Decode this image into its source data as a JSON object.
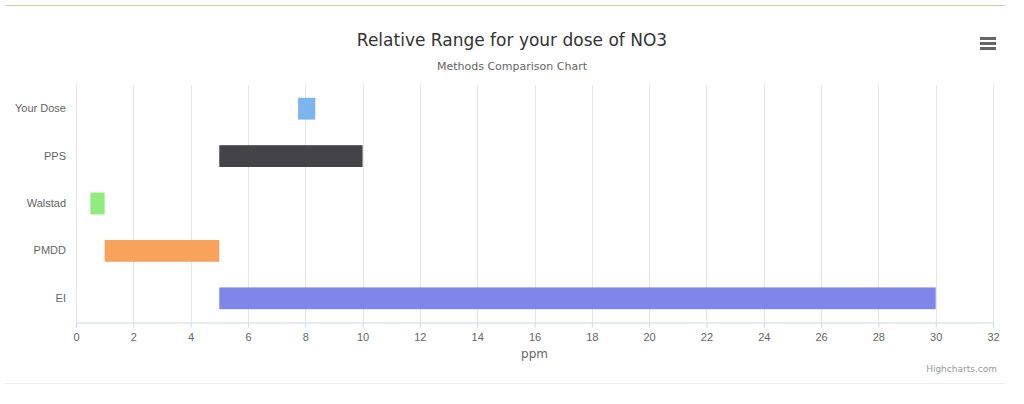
{
  "chart_data": {
    "type": "bar",
    "orientation": "horizontal",
    "title": "Relative Range for your dose of NO3",
    "subtitle": "Methods Comparison Chart",
    "x_label": "ppm",
    "credits": "Highcharts.com",
    "categories": [
      "Your Dose",
      "PPS",
      "Walstad",
      "PMDD",
      "EI"
    ],
    "low": [
      7.75,
      5,
      0.5,
      1,
      5
    ],
    "high": [
      8.35,
      10,
      1,
      5,
      30
    ],
    "colors": [
      "#7cb5ec",
      "#434348",
      "#90ed7d",
      "#f7a35c",
      "#8085e9"
    ],
    "xlim": [
      0,
      32
    ],
    "xticks": [
      0,
      2,
      4,
      6,
      8,
      10,
      12,
      14,
      16,
      18,
      20,
      22,
      24,
      26,
      28,
      30,
      32
    ],
    "grid": true
  }
}
